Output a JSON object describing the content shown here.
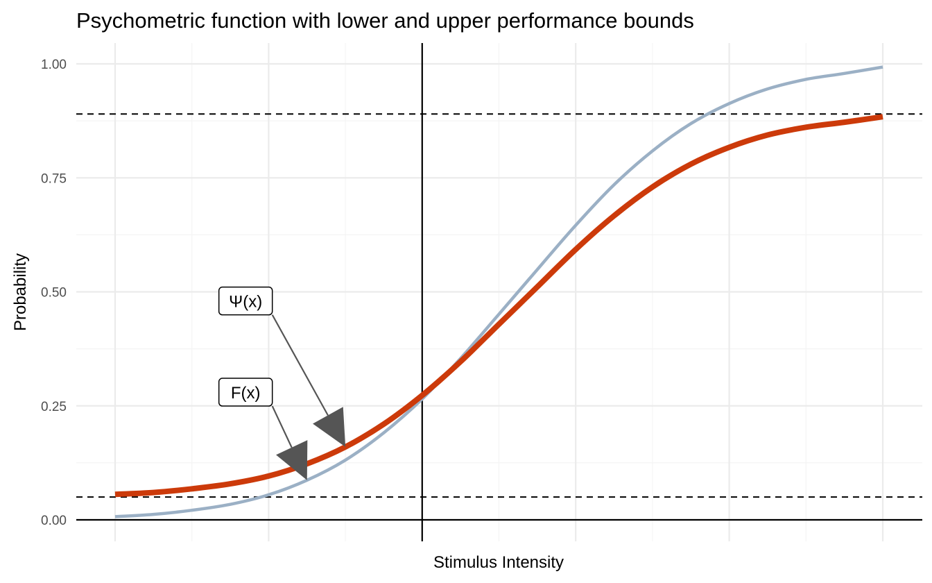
{
  "chart_data": {
    "type": "line",
    "title": "Psychometric function with lower and upper performance bounds",
    "xlabel": "Stimulus Intensity",
    "ylabel": "Probability",
    "xlim": [
      -4,
      6
    ],
    "ylim": [
      0,
      1
    ],
    "grid": true,
    "y_ticks": [
      {
        "value": 0,
        "label": "0.00"
      },
      {
        "value": 0.25,
        "label": "0.25"
      },
      {
        "value": 0.5,
        "label": "0.50"
      },
      {
        "value": 0.75,
        "label": "0.75"
      },
      {
        "value": 1,
        "label": "1.00"
      }
    ],
    "x_gridlines": [
      -4,
      -3,
      -2,
      -1,
      0,
      1,
      2,
      3,
      4,
      5,
      6
    ],
    "reference_lines": {
      "vertical_x": 0,
      "horizontal_y": 0,
      "lower_bound": 0.05,
      "upper_bound": 0.89
    },
    "series": [
      {
        "key": "F",
        "color": "#9BB0C5",
        "x": [
          -4,
          -3.5,
          -3,
          -2.5,
          -2,
          -1.5,
          -1,
          -0.5,
          0,
          0.5,
          1,
          1.5,
          2,
          2.5,
          3,
          3.5,
          4,
          4.5,
          5,
          5.5,
          6
        ],
        "y": [
          0.007,
          0.012,
          0.021,
          0.034,
          0.055,
          0.087,
          0.131,
          0.191,
          0.265,
          0.354,
          0.451,
          0.549,
          0.646,
          0.735,
          0.809,
          0.869,
          0.913,
          0.945,
          0.966,
          0.979,
          0.993
        ]
      },
      {
        "key": "Psi",
        "color": "#CC3A0A",
        "x": [
          -4,
          -3.5,
          -3,
          -2.5,
          -2,
          -1.5,
          -1,
          -0.5,
          0,
          0.5,
          1,
          1.5,
          2,
          2.5,
          3,
          3.5,
          4,
          4.5,
          5,
          5.5,
          6
        ],
        "y": [
          0.056,
          0.06,
          0.068,
          0.079,
          0.096,
          0.123,
          0.16,
          0.21,
          0.273,
          0.347,
          0.429,
          0.511,
          0.593,
          0.667,
          0.73,
          0.78,
          0.817,
          0.844,
          0.861,
          0.872,
          0.884
        ]
      }
    ],
    "annotations": [
      {
        "label": "Ψ(x)",
        "label_x": -2.3,
        "label_y": 0.48,
        "target_x": -1,
        "target_y": 0.16
      },
      {
        "label": "F(x)",
        "label_x": -2.3,
        "label_y": 0.28,
        "target_x": -1.5,
        "target_y": 0.087
      }
    ]
  }
}
